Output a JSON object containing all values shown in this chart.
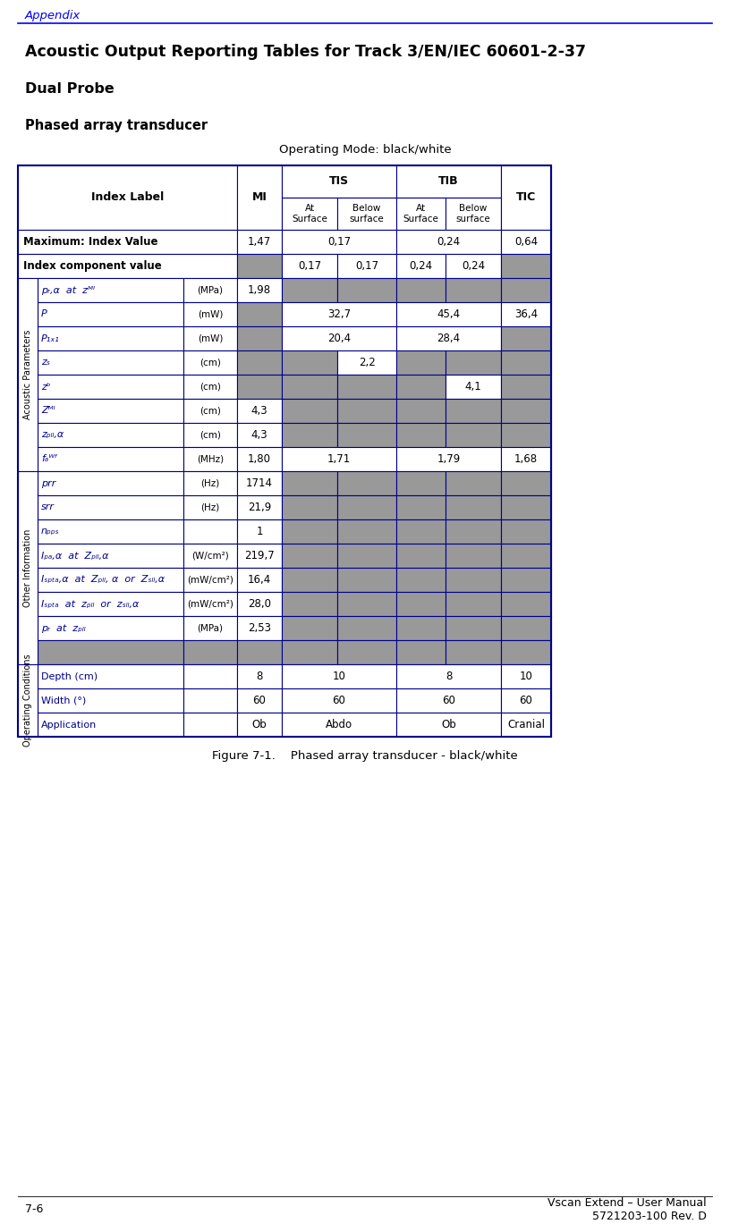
{
  "page_title": "Appendix",
  "main_title": "Acoustic Output Reporting Tables for Track 3/EN/IEC 60601-2-37",
  "subtitle1": "Dual Probe",
  "subtitle2": "Phased array transducer",
  "subtitle3": "Operating Mode: black/white",
  "figure_caption": "Figure 7-1.    Phased array transducer - black/white",
  "footer_left": "7-6",
  "footer_right": "Vscan Extend – User Manual\n5721203-100 Rev. D",
  "gray_cell": "#999999",
  "white_cell": "#ffffff",
  "blue_border": "#00008B",
  "rows": [
    {
      "section": null,
      "label": "Maximum: Index Value",
      "label_italic": false,
      "label_bold": true,
      "unit": "",
      "cells": [
        {
          "val": "1,47",
          "gray": false,
          "span": 1,
          "col": "mi"
        },
        {
          "val": "0,17",
          "gray": false,
          "span": 2,
          "col": "tis"
        },
        {
          "val": "0,24",
          "gray": false,
          "span": 2,
          "col": "tib"
        },
        {
          "val": "0,64",
          "gray": false,
          "span": 1,
          "col": "tic"
        }
      ]
    },
    {
      "section": null,
      "label": "Index component value",
      "label_italic": false,
      "label_bold": true,
      "unit": "",
      "cells": [
        {
          "val": "",
          "gray": true,
          "span": 1,
          "col": "mi"
        },
        {
          "val": "0,17",
          "gray": false,
          "span": 1,
          "col": "tis_at"
        },
        {
          "val": "0,17",
          "gray": false,
          "span": 1,
          "col": "tis_bel"
        },
        {
          "val": "0,24",
          "gray": false,
          "span": 1,
          "col": "tib_at"
        },
        {
          "val": "0,24",
          "gray": false,
          "span": 1,
          "col": "tib_bel"
        },
        {
          "val": "",
          "gray": true,
          "span": 1,
          "col": "tic"
        }
      ]
    },
    {
      "section": "Acoustic Parameters",
      "label": "pᵣ,α  at  zᴹᴵ",
      "label_italic": true,
      "label_bold": false,
      "unit": "(MPa)",
      "cells": [
        {
          "val": "1,98",
          "gray": false,
          "span": 1,
          "col": "mi"
        },
        {
          "val": "",
          "gray": true,
          "span": 1,
          "col": "tis_at"
        },
        {
          "val": "",
          "gray": true,
          "span": 1,
          "col": "tis_bel"
        },
        {
          "val": "",
          "gray": true,
          "span": 1,
          "col": "tib_at"
        },
        {
          "val": "",
          "gray": true,
          "span": 1,
          "col": "tib_bel"
        },
        {
          "val": "",
          "gray": true,
          "span": 1,
          "col": "tic"
        }
      ]
    },
    {
      "section": "Acoustic Parameters",
      "label": "P",
      "label_italic": true,
      "label_bold": false,
      "unit": "(mW)",
      "cells": [
        {
          "val": "",
          "gray": true,
          "span": 1,
          "col": "mi"
        },
        {
          "val": "32,7",
          "gray": false,
          "span": 2,
          "col": "tis"
        },
        {
          "val": "45,4",
          "gray": false,
          "span": 2,
          "col": "tib"
        },
        {
          "val": "36,4",
          "gray": false,
          "span": 1,
          "col": "tic"
        }
      ]
    },
    {
      "section": "Acoustic Parameters",
      "label": "P₁ₓ₁",
      "label_italic": true,
      "label_bold": false,
      "unit": "(mW)",
      "cells": [
        {
          "val": "",
          "gray": true,
          "span": 1,
          "col": "mi"
        },
        {
          "val": "20,4",
          "gray": false,
          "span": 2,
          "col": "tis"
        },
        {
          "val": "28,4",
          "gray": false,
          "span": 2,
          "col": "tib"
        },
        {
          "val": "",
          "gray": true,
          "span": 1,
          "col": "tic"
        }
      ]
    },
    {
      "section": "Acoustic Parameters",
      "label": "zₛ",
      "label_italic": true,
      "label_bold": false,
      "unit": "(cm)",
      "cells": [
        {
          "val": "",
          "gray": true,
          "span": 1,
          "col": "mi"
        },
        {
          "val": "",
          "gray": true,
          "span": 1,
          "col": "tis_at"
        },
        {
          "val": "2,2",
          "gray": false,
          "span": 1,
          "col": "tis_bel"
        },
        {
          "val": "",
          "gray": true,
          "span": 1,
          "col": "tib_at"
        },
        {
          "val": "",
          "gray": true,
          "span": 1,
          "col": "tib_bel"
        },
        {
          "val": "",
          "gray": true,
          "span": 1,
          "col": "tic"
        }
      ]
    },
    {
      "section": "Acoustic Parameters",
      "label": "zᵇ",
      "label_italic": true,
      "label_bold": false,
      "unit": "(cm)",
      "cells": [
        {
          "val": "",
          "gray": true,
          "span": 1,
          "col": "mi"
        },
        {
          "val": "",
          "gray": true,
          "span": 1,
          "col": "tis_at"
        },
        {
          "val": "",
          "gray": true,
          "span": 1,
          "col": "tis_bel"
        },
        {
          "val": "",
          "gray": true,
          "span": 1,
          "col": "tib_at"
        },
        {
          "val": "4,1",
          "gray": false,
          "span": 1,
          "col": "tib_bel"
        },
        {
          "val": "",
          "gray": true,
          "span": 1,
          "col": "tic"
        }
      ]
    },
    {
      "section": "Acoustic Parameters",
      "label": "Zᴹᴵ",
      "label_italic": true,
      "label_bold": false,
      "unit": "(cm)",
      "cells": [
        {
          "val": "4,3",
          "gray": false,
          "span": 1,
          "col": "mi"
        },
        {
          "val": "",
          "gray": true,
          "span": 1,
          "col": "tis_at"
        },
        {
          "val": "",
          "gray": true,
          "span": 1,
          "col": "tis_bel"
        },
        {
          "val": "",
          "gray": true,
          "span": 1,
          "col": "tib_at"
        },
        {
          "val": "",
          "gray": true,
          "span": 1,
          "col": "tib_bel"
        },
        {
          "val": "",
          "gray": true,
          "span": 1,
          "col": "tic"
        }
      ]
    },
    {
      "section": "Acoustic Parameters",
      "label": "zₚₗₗ,α",
      "label_italic": true,
      "label_bold": false,
      "unit": "(cm)",
      "cells": [
        {
          "val": "4,3",
          "gray": false,
          "span": 1,
          "col": "mi"
        },
        {
          "val": "",
          "gray": true,
          "span": 1,
          "col": "tis_at"
        },
        {
          "val": "",
          "gray": true,
          "span": 1,
          "col": "tis_bel"
        },
        {
          "val": "",
          "gray": true,
          "span": 1,
          "col": "tib_at"
        },
        {
          "val": "",
          "gray": true,
          "span": 1,
          "col": "tib_bel"
        },
        {
          "val": "",
          "gray": true,
          "span": 1,
          "col": "tic"
        }
      ]
    },
    {
      "section": "Acoustic Parameters",
      "label": "fₐᵂᶠ",
      "label_italic": true,
      "label_bold": false,
      "unit": "(MHz)",
      "cells": [
        {
          "val": "1,80",
          "gray": false,
          "span": 1,
          "col": "mi"
        },
        {
          "val": "1,71",
          "gray": false,
          "span": 2,
          "col": "tis"
        },
        {
          "val": "1,79",
          "gray": false,
          "span": 2,
          "col": "tib"
        },
        {
          "val": "1,68",
          "gray": false,
          "span": 1,
          "col": "tic"
        }
      ]
    },
    {
      "section": "Other Information",
      "label": "prr",
      "label_italic": true,
      "label_bold": false,
      "unit": "(Hz)",
      "cells": [
        {
          "val": "1714",
          "gray": false,
          "span": 1,
          "col": "mi"
        },
        {
          "val": "",
          "gray": true,
          "span": 1,
          "col": "tis_at"
        },
        {
          "val": "",
          "gray": true,
          "span": 1,
          "col": "tis_bel"
        },
        {
          "val": "",
          "gray": true,
          "span": 1,
          "col": "tib_at"
        },
        {
          "val": "",
          "gray": true,
          "span": 1,
          "col": "tib_bel"
        },
        {
          "val": "",
          "gray": true,
          "span": 1,
          "col": "tic"
        }
      ]
    },
    {
      "section": "Other Information",
      "label": "srr",
      "label_italic": true,
      "label_bold": false,
      "unit": "(Hz)",
      "cells": [
        {
          "val": "21,9",
          "gray": false,
          "span": 1,
          "col": "mi"
        },
        {
          "val": "",
          "gray": true,
          "span": 1,
          "col": "tis_at"
        },
        {
          "val": "",
          "gray": true,
          "span": 1,
          "col": "tis_bel"
        },
        {
          "val": "",
          "gray": true,
          "span": 1,
          "col": "tib_at"
        },
        {
          "val": "",
          "gray": true,
          "span": 1,
          "col": "tib_bel"
        },
        {
          "val": "",
          "gray": true,
          "span": 1,
          "col": "tic"
        }
      ]
    },
    {
      "section": "Other Information",
      "label": "nₚₚₛ",
      "label_italic": true,
      "label_bold": false,
      "unit": "",
      "cells": [
        {
          "val": "1",
          "gray": false,
          "span": 1,
          "col": "mi"
        },
        {
          "val": "",
          "gray": true,
          "span": 1,
          "col": "tis_at"
        },
        {
          "val": "",
          "gray": true,
          "span": 1,
          "col": "tis_bel"
        },
        {
          "val": "",
          "gray": true,
          "span": 1,
          "col": "tib_at"
        },
        {
          "val": "",
          "gray": true,
          "span": 1,
          "col": "tib_bel"
        },
        {
          "val": "",
          "gray": true,
          "span": 1,
          "col": "tic"
        }
      ]
    },
    {
      "section": "Other Information",
      "label": "Iₚₐ,α  at  Zₚₗₗ,α",
      "label_italic": true,
      "label_bold": false,
      "unit": "(W/cm²)",
      "cells": [
        {
          "val": "219,7",
          "gray": false,
          "span": 1,
          "col": "mi"
        },
        {
          "val": "",
          "gray": true,
          "span": 1,
          "col": "tis_at"
        },
        {
          "val": "",
          "gray": true,
          "span": 1,
          "col": "tis_bel"
        },
        {
          "val": "",
          "gray": true,
          "span": 1,
          "col": "tib_at"
        },
        {
          "val": "",
          "gray": true,
          "span": 1,
          "col": "tib_bel"
        },
        {
          "val": "",
          "gray": true,
          "span": 1,
          "col": "tic"
        }
      ]
    },
    {
      "section": "Other Information",
      "label": "Iₛₚₜₐ,α  at  Zₚₗₗ, α  or  Zₛₗₗ,α",
      "label_italic": true,
      "label_bold": false,
      "unit": "(mW/cm²)",
      "cells": [
        {
          "val": "16,4",
          "gray": false,
          "span": 1,
          "col": "mi"
        },
        {
          "val": "",
          "gray": true,
          "span": 1,
          "col": "tis_at"
        },
        {
          "val": "",
          "gray": true,
          "span": 1,
          "col": "tis_bel"
        },
        {
          "val": "",
          "gray": true,
          "span": 1,
          "col": "tib_at"
        },
        {
          "val": "",
          "gray": true,
          "span": 1,
          "col": "tib_bel"
        },
        {
          "val": "",
          "gray": true,
          "span": 1,
          "col": "tic"
        }
      ]
    },
    {
      "section": "Other Information",
      "label": "Iₛₚₜₐ  at  zₚₗₗ  or  zₛₗₗ,α",
      "label_italic": true,
      "label_bold": false,
      "unit": "(mW/cm²)",
      "cells": [
        {
          "val": "28,0",
          "gray": false,
          "span": 1,
          "col": "mi"
        },
        {
          "val": "",
          "gray": true,
          "span": 1,
          "col": "tis_at"
        },
        {
          "val": "",
          "gray": true,
          "span": 1,
          "col": "tis_bel"
        },
        {
          "val": "",
          "gray": true,
          "span": 1,
          "col": "tib_at"
        },
        {
          "val": "",
          "gray": true,
          "span": 1,
          "col": "tib_bel"
        },
        {
          "val": "",
          "gray": true,
          "span": 1,
          "col": "tic"
        }
      ]
    },
    {
      "section": "Other Information",
      "label": "pᵣ  at  zₚₗₗ",
      "label_italic": true,
      "label_bold": false,
      "unit": "(MPa)",
      "cells": [
        {
          "val": "2,53",
          "gray": false,
          "span": 1,
          "col": "mi"
        },
        {
          "val": "",
          "gray": true,
          "span": 1,
          "col": "tis_at"
        },
        {
          "val": "",
          "gray": true,
          "span": 1,
          "col": "tis_bel"
        },
        {
          "val": "",
          "gray": true,
          "span": 1,
          "col": "tib_at"
        },
        {
          "val": "",
          "gray": true,
          "span": 1,
          "col": "tib_bel"
        },
        {
          "val": "",
          "gray": true,
          "span": 1,
          "col": "tic"
        }
      ]
    },
    {
      "section": "Other Information",
      "label": "",
      "label_italic": false,
      "label_bold": false,
      "unit": "",
      "gray_label": true,
      "cells": [
        {
          "val": "",
          "gray": true,
          "span": 1,
          "col": "mi"
        },
        {
          "val": "",
          "gray": true,
          "span": 1,
          "col": "tis_at"
        },
        {
          "val": "",
          "gray": true,
          "span": 1,
          "col": "tis_bel"
        },
        {
          "val": "",
          "gray": true,
          "span": 1,
          "col": "tib_at"
        },
        {
          "val": "",
          "gray": true,
          "span": 1,
          "col": "tib_bel"
        },
        {
          "val": "",
          "gray": true,
          "span": 1,
          "col": "tic"
        }
      ]
    },
    {
      "section": "Operating Conditions",
      "label": "Depth (cm)",
      "label_italic": false,
      "label_bold": false,
      "unit": "",
      "cells": [
        {
          "val": "8",
          "gray": false,
          "span": 1,
          "col": "mi"
        },
        {
          "val": "10",
          "gray": false,
          "span": 2,
          "col": "tis"
        },
        {
          "val": "8",
          "gray": false,
          "span": 2,
          "col": "tib"
        },
        {
          "val": "10",
          "gray": false,
          "span": 1,
          "col": "tic"
        }
      ]
    },
    {
      "section": "Operating Conditions",
      "label": "Width (°)",
      "label_italic": false,
      "label_bold": false,
      "unit": "",
      "cells": [
        {
          "val": "60",
          "gray": false,
          "span": 1,
          "col": "mi"
        },
        {
          "val": "60",
          "gray": false,
          "span": 2,
          "col": "tis"
        },
        {
          "val": "60",
          "gray": false,
          "span": 2,
          "col": "tib"
        },
        {
          "val": "60",
          "gray": false,
          "span": 1,
          "col": "tic"
        }
      ]
    },
    {
      "section": "Operating Conditions",
      "label": "Application",
      "label_italic": false,
      "label_bold": false,
      "unit": "",
      "cells": [
        {
          "val": "Ob",
          "gray": false,
          "span": 1,
          "col": "mi"
        },
        {
          "val": "Abdo",
          "gray": false,
          "span": 2,
          "col": "tis"
        },
        {
          "val": "Ob",
          "gray": false,
          "span": 2,
          "col": "tib"
        },
        {
          "val": "Cranial",
          "gray": false,
          "span": 1,
          "col": "tic"
        }
      ]
    }
  ]
}
